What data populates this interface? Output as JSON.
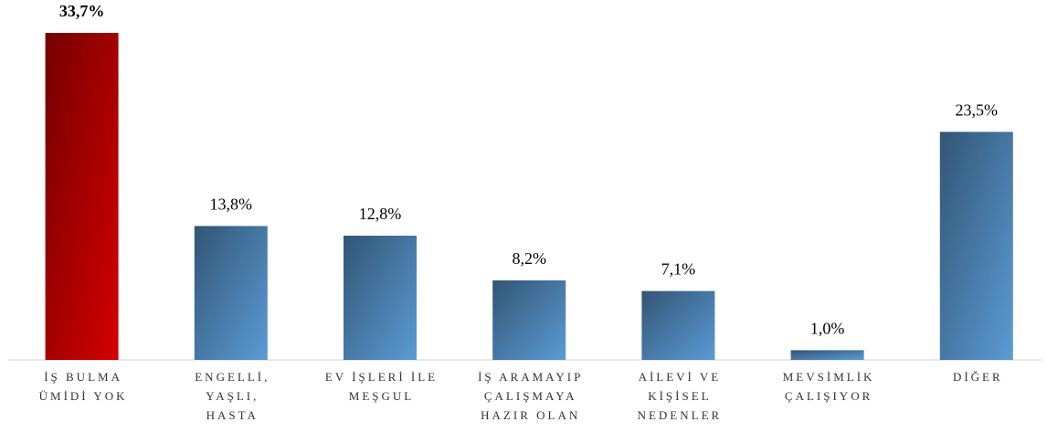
{
  "chart_data": {
    "type": "bar",
    "categories": [
      [
        "İŞ BULMA",
        "ÜMİDİ YOK"
      ],
      [
        "ENGELLİ,",
        "YAŞLI,",
        "HASTA"
      ],
      [
        "EV İŞLERİ İLE",
        "MEŞGUL"
      ],
      [
        "İŞ ARAMAYIP",
        "ÇALIŞMAYA",
        "HAZIR OLAN"
      ],
      [
        "AİLEVİ VE",
        "KİŞİSEL",
        "NEDENLER"
      ],
      [
        "MEVSİMLİK",
        "ÇALIŞIYOR"
      ],
      [
        "DİĞER"
      ]
    ],
    "values": [
      33.7,
      13.8,
      12.8,
      8.2,
      7.1,
      1.0,
      23.5
    ],
    "value_labels": [
      "33,7%",
      "13,8%",
      "12,8%",
      "8,2%",
      "7,1%",
      "1,0%",
      "23,5%"
    ],
    "colors": [
      "#d40000",
      "#5b9bd5",
      "#5b9bd5",
      "#5b9bd5",
      "#5b9bd5",
      "#5b9bd5",
      "#5b9bd5"
    ],
    "highlight": 0
  }
}
